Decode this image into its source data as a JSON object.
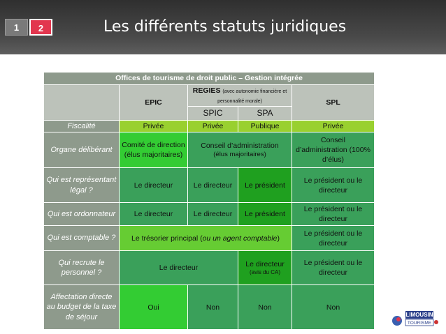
{
  "tabs": [
    "1",
    "2"
  ],
  "title": "Les différents statuts juridiques",
  "table": {
    "caption": "Offices de tourisme de droit public – Gestion intégrée",
    "head": {
      "epic": "EPIC",
      "regies": "REGIES",
      "regies_note": "(avec autonomie financière et personnalité morale)",
      "spic": "SPIC",
      "spa": "SPA",
      "spl": "SPL"
    },
    "rows": [
      {
        "label": "Fiscalité",
        "cells": [
          "Privée",
          "Privée",
          "Publique",
          "Privée"
        ]
      },
      {
        "label": "Organe délibérant",
        "cells": [
          "Comité de direction (élus majoritaires)",
          "Conseil d’administration",
          "(élus majoritaires)",
          "Conseil d’administration (100% d’élus)"
        ]
      },
      {
        "label": "Qui est représentant légal ?",
        "cells": [
          "Le directeur",
          "Le directeur",
          "Le président",
          "Le président ou le directeur"
        ]
      },
      {
        "label": "Qui est ordonnateur",
        "cells": [
          "Le directeur",
          "Le directeur",
          "Le président",
          "Le président ou le directeur"
        ]
      },
      {
        "label": "Qui est comptable ?",
        "cells": [
          "Le trésorier principal (",
          "ou un agent comptable",
          ")",
          "Le président ou le directeur"
        ]
      },
      {
        "label": "Qui recrute le personnel ?",
        "cells": [
          "Le directeur",
          "Le directeur",
          "(avis du CA)",
          "Le président ou le directeur"
        ]
      },
      {
        "label": "Affectation directe au budget de la taxe de séjour",
        "cells": [
          "Oui",
          "Non",
          "Non",
          "Non"
        ]
      }
    ]
  },
  "logo": [
    "LIMOUSIN",
    "TOURISME"
  ]
}
